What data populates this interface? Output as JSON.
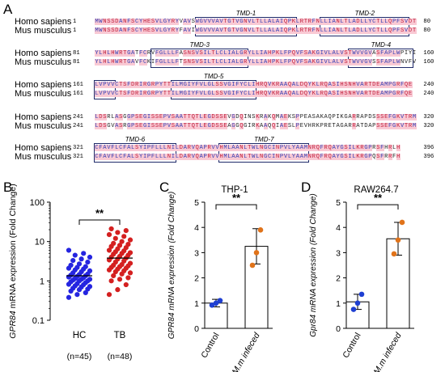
{
  "panels": {
    "A": "A",
    "B": "B",
    "C": "C",
    "D": "D"
  },
  "alignment": {
    "species": [
      "Homo sapiens",
      "Mus musculus"
    ],
    "blocks": [
      {
        "start": [
          "1",
          "1"
        ],
        "end": [
          "80",
          "80"
        ],
        "human": "MWNSSDANFSCYHESVLGYRYVAVSWGVVVAVTGTVGNVLTLLALAIQPKLRTRFNLLIANLTLADLLYCTLLQPFSVDT",
        "mouse": "MWNSSDANFSCYHESVLGYRYFAVIWGVVVAVTGTVGNVLTLLALAIQPKLRTRFNLLIANLTLADLLYCTLLQPFSVDT",
        "tmds": [
          {
            "label": "TMD-1",
            "a": 25,
            "b": 50
          },
          {
            "label": "TMD-2",
            "a": 56,
            "b": 78
          }
        ]
      },
      {
        "start": [
          "81",
          "81"
        ],
        "end": [
          "160",
          "160"
        ],
        "human": "YLHLHWRTGATFCRVFGLLLFASNSVSILTLCLIALGRYLLIAHPKLFPQVFSAKGIVLALVSTWVVGVASFAPLWPIYI",
        "mouse": "YLHLHWRTGAVFCKIFGLLLFTSNSVSILTLCLIALGRYLLIAHPKLFPQVFSAKGIVLALVSTWVVGVSSFAPLWNVFV",
        "tmds": [
          {
            "label": "TMD-3",
            "a": 14,
            "b": 38
          },
          {
            "label": "TMD-4",
            "a": 63,
            "b": 79
          }
        ]
      },
      {
        "start": [
          "161",
          "161"
        ],
        "end": [
          "240",
          "240"
        ],
        "human": "LVPVVCTSFDRIRGRPYTTILMGIYFVLGLSSVGIFYCLIHRQVKRAAQALDQYKLRQASIHSNHVARTDEAMPGRFQE",
        "mouse": "LVPVVCTSFDRIRGRPYTTILMGIYFVLGLSSVGIFYCLIHRQVKRAAQALDQYKLRQASIHSNHVARTDEAMPGRFQE",
        "tmds": [
          {
            "label": "TMD-5",
            "a": 19,
            "b": 40
          },
          {
            "label": "",
            "a": 0,
            "b": 5
          }
        ]
      },
      {
        "start": [
          "241",
          "241"
        ],
        "end": [
          "320",
          "320"
        ],
        "human": "LDSRLASGGPSEGISSEPVSAATTQTLEGDSSEVGDQINSKRAKQMAEKSPPEASAKAQPIKGARRAPDSSSEFGKVTRM",
        "mouse": "LDSGVASRGPSEGISSEPVSAATTQTLEGDSSEAGGQGIRKAAQQIAESLPEVHRKPRETAGARRATDAPSSEFGKVTRM",
        "tmds": []
      },
      {
        "start": [
          "321",
          "321"
        ],
        "end": [
          "396",
          "396"
        ],
        "human": "CFAVFLCFALSYIPFLLLNILDARVQAPRVVHMLAANLTWLNGCINPVLYAAMNRQFRQAYGSILKRGPRSFHRLH",
        "mouse": "CFAVFLCFALSYIPFLLLNILDARVQAPRVVHMLAANLTWLNGCINPVLYAAMNRQFRQAYGSILKRGPQSFRRFH",
        "tmds": [
          {
            "label": "TMD-6",
            "a": 0,
            "b": 20
          },
          {
            "label": "TMD-7",
            "a": 31,
            "b": 53
          }
        ]
      }
    ]
  },
  "colors": {
    "pink": "#f9c9d4",
    "red": "#c0213d",
    "blue": "#3340b5",
    "boxes": "#1f2a6a",
    "hc": "#2525e0",
    "tb": "#d42020",
    "orange": "#e0731a",
    "dotBlue": "#1e3fd2",
    "sig": "#000000"
  },
  "chart_data": [
    {
      "type": "scatter",
      "panel": "B",
      "ylabel_gene": "GPR84",
      "ylabel_rest": " mRNA expression (Fold Change)",
      "yscale": "log",
      "ylim": [
        0.1,
        100
      ],
      "ticks": [
        "0.1",
        "1",
        "10",
        "100"
      ],
      "categories": [
        "HC",
        "TB"
      ],
      "counts": [
        "(n=45)",
        "(n=48)"
      ],
      "means": [
        1.35,
        3.8
      ],
      "sig": "**",
      "series": [
        {
          "name": "HC",
          "values": [
            0.38,
            0.45,
            0.5,
            0.55,
            0.6,
            0.62,
            0.65,
            0.7,
            0.72,
            0.75,
            0.8,
            0.82,
            0.85,
            0.9,
            0.95,
            1.0,
            1.0,
            1.05,
            1.1,
            1.1,
            1.15,
            1.2,
            1.25,
            1.3,
            1.35,
            1.4,
            1.45,
            1.5,
            1.6,
            1.7,
            1.8,
            1.9,
            2.0,
            2.1,
            2.2,
            2.3,
            2.5,
            2.7,
            3.0,
            3.3,
            3.6,
            4.0,
            4.5,
            5.0,
            6.0
          ]
        },
        {
          "name": "TB",
          "values": [
            0.45,
            0.6,
            0.8,
            1.0,
            1.1,
            1.2,
            1.35,
            1.5,
            1.6,
            1.7,
            1.8,
            1.9,
            2.0,
            2.1,
            2.2,
            2.3,
            2.4,
            2.5,
            2.6,
            2.8,
            3.0,
            3.2,
            3.4,
            3.6,
            3.8,
            4.0,
            4.2,
            4.5,
            4.8,
            5.0,
            5.2,
            5.5,
            5.8,
            6.0,
            6.5,
            7.0,
            7.5,
            8.0,
            8.5,
            9.0,
            10.0,
            11.0,
            12.0,
            13.5,
            15.0,
            17.0,
            19.0,
            21.0
          ]
        }
      ]
    },
    {
      "type": "bar",
      "panel": "C",
      "title": "THP-1",
      "ylabel": "GPR84 mRNA expression (Fold Change)",
      "ylim": [
        0,
        5
      ],
      "ticks": [
        "0",
        "1",
        "2",
        "3",
        "4",
        "5"
      ],
      "categories": [
        "Control",
        "M.m infeced"
      ],
      "values": [
        1.0,
        3.25
      ],
      "errors": [
        0.15,
        0.7
      ],
      "points": [
        [
          0.92,
          1.0,
          1.1
        ],
        [
          2.5,
          3.0,
          3.9
        ]
      ],
      "sig": "**"
    },
    {
      "type": "bar",
      "panel": "D",
      "title": "RAW264.7",
      "ylabel": "Gpr84 mRNA expression (Fold Change)",
      "ylim": [
        0,
        5
      ],
      "ticks": [
        "0",
        "1",
        "2",
        "3",
        "4",
        "5"
      ],
      "categories": [
        "Control",
        "M.m infeced"
      ],
      "values": [
        1.05,
        3.55
      ],
      "errors": [
        0.3,
        0.65
      ],
      "points": [
        [
          0.75,
          1.0,
          1.35
        ],
        [
          2.95,
          3.5,
          4.2
        ]
      ],
      "sig": "**"
    }
  ]
}
